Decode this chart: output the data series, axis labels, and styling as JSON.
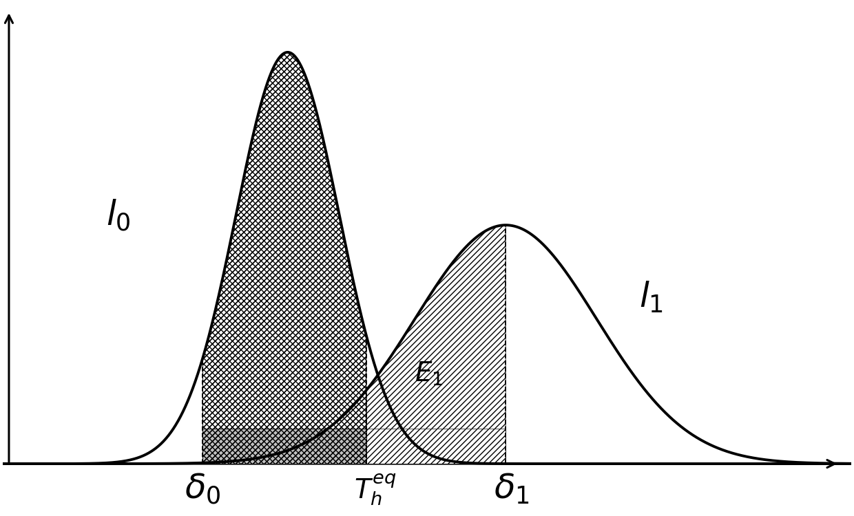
{
  "mu0": 4.2,
  "sigma0": 0.85,
  "amp0": 1.0,
  "mu1": 7.8,
  "sigma1": 1.5,
  "amp1": 0.58,
  "delta0": 2.8,
  "delta1": 7.8,
  "T_eq": 5.5,
  "background_color": "#ffffff",
  "curve_color": "#000000",
  "label_l0": "$l_0$",
  "label_l1": "$l_1$",
  "label_delta0": "$\\delta_0$",
  "label_delta1": "$\\delta_1$",
  "label_Teq": "$T_h^{eq}$",
  "label_E1": "$E_1$",
  "xmin": -0.5,
  "xmax": 13.5,
  "ymin": -0.12,
  "ymax": 1.12
}
